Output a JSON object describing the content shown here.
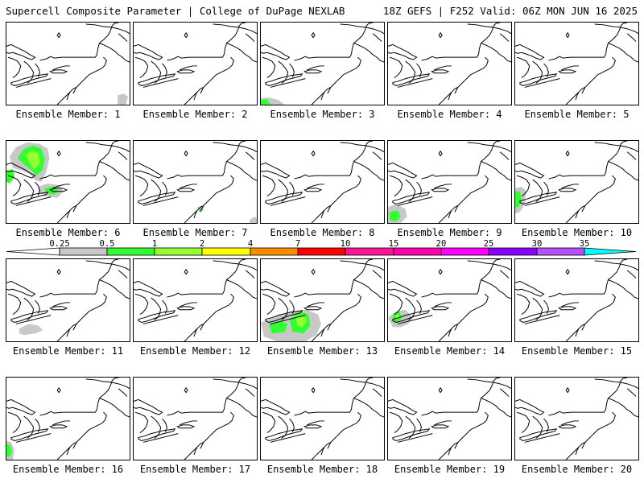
{
  "header": {
    "left": "Supercell Composite Parameter | College of DuPage NEXLAB",
    "right": "18Z GEFS | F252 Valid: 06Z MON JUN 16 2025"
  },
  "colorbar": {
    "ticks": [
      "0.25",
      "0.5",
      "1",
      "2",
      "4",
      "7",
      "10",
      "15",
      "20",
      "25",
      "30",
      "35"
    ],
    "colors": [
      "#c8c8c8",
      "#32ff32",
      "#96ff32",
      "#ffff00",
      "#ff8c00",
      "#ff0000",
      "#ff1493",
      "#ff00aa",
      "#ff00ff",
      "#8c00ff",
      "#b450ff",
      "#00ffff"
    ]
  },
  "members": [
    {
      "label": "Ensemble Member: 1"
    },
    {
      "label": "Ensemble Member: 2"
    },
    {
      "label": "Ensemble Member: 3"
    },
    {
      "label": "Ensemble Member: 4"
    },
    {
      "label": "Ensemble Member: 5"
    },
    {
      "label": "Ensemble Member: 6"
    },
    {
      "label": "Ensemble Member: 7"
    },
    {
      "label": "Ensemble Member: 8"
    },
    {
      "label": "Ensemble Member: 9"
    },
    {
      "label": "Ensemble Member: 10"
    },
    {
      "label": "Ensemble Member: 11"
    },
    {
      "label": "Ensemble Member: 12"
    },
    {
      "label": "Ensemble Member: 13"
    },
    {
      "label": "Ensemble Member: 14"
    },
    {
      "label": "Ensemble Member: 15"
    },
    {
      "label": "Ensemble Member: 16"
    },
    {
      "label": "Ensemble Member: 17"
    },
    {
      "label": "Ensemble Member: 18"
    },
    {
      "label": "Ensemble Member: 19"
    },
    {
      "label": "Ensemble Member: 20"
    }
  ]
}
